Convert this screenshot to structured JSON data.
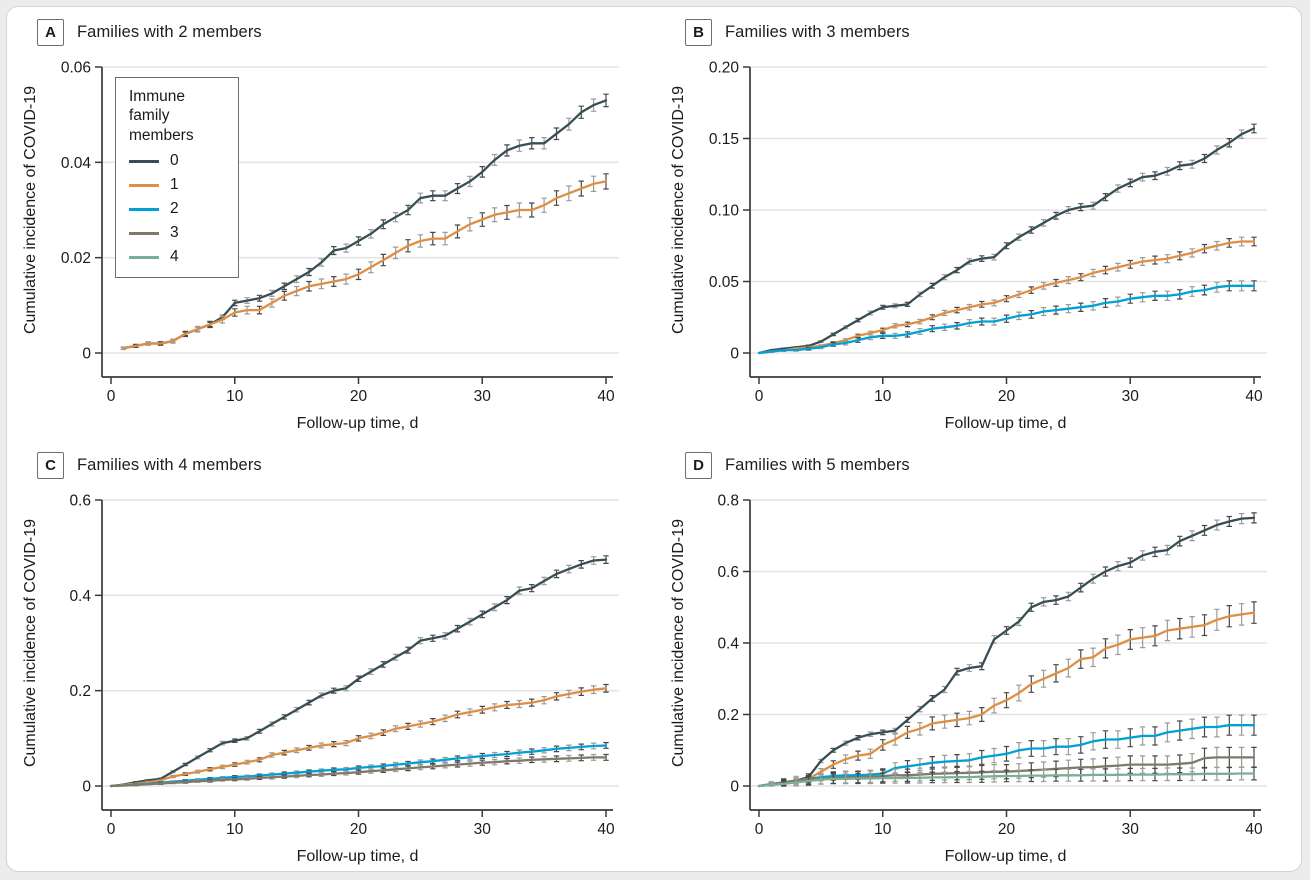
{
  "figure": {
    "xlabel": "Follow-up time, d",
    "ylabel": "Cumulative incidence of COVID-19",
    "legend": {
      "title": "Immune family members",
      "entries": [
        {
          "label": "0",
          "color": "#374E55"
        },
        {
          "label": "1",
          "color": "#DF8F44"
        },
        {
          "label": "2",
          "color": "#00A1D5"
        },
        {
          "label": "3",
          "color": "#80796B"
        },
        {
          "label": "4",
          "color": "#79AF97"
        }
      ]
    },
    "colors": {
      "series_0": "#374E55",
      "series_1": "#DF8F44",
      "series_2": "#00A1D5",
      "series_3": "#80796B",
      "series_4": "#79AF97",
      "error_bar_dark": "#48484B",
      "error_bar_light": "#9B9B99",
      "grid": "#E4E4E4",
      "axis": "#3A3A3C",
      "card_border": "#D4D4D4",
      "page_background": "#ECECEC"
    }
  },
  "chart_data": [
    {
      "type": "line",
      "panel": "A",
      "title": "Families with 2 members",
      "xlabel": "Follow-up time, d",
      "ylabel": "Cumulative incidence of COVID-19",
      "x": {
        "start": 0,
        "end": 40,
        "step": 1
      },
      "xticks": [
        0,
        10,
        20,
        30,
        40
      ],
      "ylim": [
        0,
        0.06
      ],
      "ytick_values": [
        0,
        0.02,
        0.04,
        0.06
      ],
      "ytick_labels": [
        "0",
        "0.02",
        "0.04",
        "0.06"
      ],
      "start_day": 1,
      "show_legend": true,
      "series": [
        {
          "name": "0",
          "color": "#374E55",
          "err_end": 0.0013,
          "values": [
            0,
            0.001,
            0.0015,
            0.002,
            0.002,
            0.0025,
            0.004,
            0.005,
            0.006,
            0.0075,
            0.0105,
            0.011,
            0.0115,
            0.0125,
            0.014,
            0.0155,
            0.017,
            0.019,
            0.0215,
            0.022,
            0.0235,
            0.025,
            0.027,
            0.0285,
            0.03,
            0.0325,
            0.033,
            0.033,
            0.0345,
            0.036,
            0.038,
            0.0405,
            0.0425,
            0.0435,
            0.044,
            0.044,
            0.046,
            0.048,
            0.0505,
            0.052,
            0.053
          ]
        },
        {
          "name": "1",
          "color": "#DF8F44",
          "err_end": 0.0016,
          "values": [
            0,
            0.001,
            0.0015,
            0.002,
            0.002,
            0.0025,
            0.004,
            0.005,
            0.006,
            0.007,
            0.0085,
            0.009,
            0.009,
            0.0105,
            0.012,
            0.013,
            0.014,
            0.0145,
            0.015,
            0.0155,
            0.0165,
            0.018,
            0.0195,
            0.021,
            0.0225,
            0.0235,
            0.024,
            0.024,
            0.0255,
            0.027,
            0.028,
            0.029,
            0.0295,
            0.03,
            0.03,
            0.031,
            0.0325,
            0.0335,
            0.0345,
            0.0355,
            0.036
          ]
        }
      ]
    },
    {
      "type": "line",
      "panel": "B",
      "title": "Families with 3 members",
      "xlabel": "Follow-up time, d",
      "ylabel": "Cumulative incidence of COVID-19",
      "x": {
        "start": 0,
        "end": 40,
        "step": 1
      },
      "xticks": [
        0,
        10,
        20,
        30,
        40
      ],
      "ylim": [
        0,
        0.2
      ],
      "ytick_values": [
        0,
        0.05,
        0.1,
        0.15,
        0.2
      ],
      "ytick_labels": [
        "0",
        "0.05",
        "0.10",
        "0.15",
        "0.20"
      ],
      "start_day": 0,
      "show_legend": false,
      "series": [
        {
          "name": "0",
          "color": "#374E55",
          "err_end": 0.003,
          "values": [
            0,
            0.002,
            0.003,
            0.004,
            0.005,
            0.008,
            0.013,
            0.018,
            0.023,
            0.028,
            0.032,
            0.033,
            0.034,
            0.041,
            0.047,
            0.053,
            0.058,
            0.064,
            0.066,
            0.067,
            0.075,
            0.081,
            0.086,
            0.091,
            0.096,
            0.1,
            0.102,
            0.103,
            0.109,
            0.115,
            0.119,
            0.123,
            0.124,
            0.127,
            0.131,
            0.132,
            0.136,
            0.142,
            0.147,
            0.153,
            0.157
          ]
        },
        {
          "name": "1",
          "color": "#DF8F44",
          "err_end": 0.003,
          "values": [
            0,
            0.001,
            0.002,
            0.003,
            0.004,
            0.005,
            0.007,
            0.009,
            0.012,
            0.014,
            0.016,
            0.019,
            0.02,
            0.022,
            0.025,
            0.028,
            0.03,
            0.032,
            0.034,
            0.035,
            0.038,
            0.041,
            0.044,
            0.047,
            0.049,
            0.051,
            0.053,
            0.056,
            0.058,
            0.06,
            0.062,
            0.064,
            0.065,
            0.066,
            0.068,
            0.07,
            0.073,
            0.075,
            0.077,
            0.078,
            0.078
          ]
        },
        {
          "name": "2",
          "color": "#00A1D5",
          "err_end": 0.0035,
          "values": [
            0,
            0.001,
            0.002,
            0.002,
            0.003,
            0.004,
            0.006,
            0.007,
            0.009,
            0.011,
            0.012,
            0.012,
            0.013,
            0.015,
            0.017,
            0.018,
            0.019,
            0.021,
            0.022,
            0.022,
            0.024,
            0.026,
            0.027,
            0.029,
            0.03,
            0.031,
            0.032,
            0.033,
            0.035,
            0.036,
            0.038,
            0.039,
            0.04,
            0.04,
            0.041,
            0.043,
            0.044,
            0.046,
            0.047,
            0.047,
            0.047
          ]
        }
      ]
    },
    {
      "type": "line",
      "panel": "C",
      "title": "Families with 4 members",
      "xlabel": "Follow-up time, d",
      "ylabel": "Cumulative incidence of COVID-19",
      "x": {
        "start": 0,
        "end": 40,
        "step": 1
      },
      "xticks": [
        0,
        10,
        20,
        30,
        40
      ],
      "ylim": [
        0,
        0.6
      ],
      "ytick_values": [
        0,
        0.2,
        0.4,
        0.6
      ],
      "ytick_labels": [
        "0",
        "0.2",
        "0.4",
        "0.6"
      ],
      "start_day": 0,
      "show_legend": false,
      "series": [
        {
          "name": "0",
          "color": "#374E55",
          "err_end": 0.008,
          "values": [
            0,
            0.003,
            0.008,
            0.012,
            0.015,
            0.03,
            0.045,
            0.06,
            0.075,
            0.09,
            0.095,
            0.1,
            0.115,
            0.13,
            0.145,
            0.16,
            0.175,
            0.19,
            0.2,
            0.205,
            0.225,
            0.24,
            0.255,
            0.27,
            0.285,
            0.305,
            0.31,
            0.315,
            0.33,
            0.345,
            0.36,
            0.375,
            0.39,
            0.41,
            0.415,
            0.43,
            0.445,
            0.455,
            0.465,
            0.473,
            0.475
          ]
        },
        {
          "name": "1",
          "color": "#DF8F44",
          "err_end": 0.008,
          "values": [
            0,
            0.002,
            0.005,
            0.008,
            0.012,
            0.02,
            0.025,
            0.03,
            0.035,
            0.04,
            0.045,
            0.05,
            0.055,
            0.065,
            0.07,
            0.075,
            0.08,
            0.085,
            0.088,
            0.09,
            0.1,
            0.105,
            0.112,
            0.12,
            0.125,
            0.13,
            0.135,
            0.142,
            0.15,
            0.155,
            0.16,
            0.165,
            0.17,
            0.172,
            0.175,
            0.18,
            0.188,
            0.193,
            0.198,
            0.202,
            0.205
          ]
        },
        {
          "name": "2",
          "color": "#00A1D5",
          "err_end": 0.006,
          "values": [
            0,
            0.001,
            0.003,
            0.005,
            0.007,
            0.009,
            0.011,
            0.013,
            0.015,
            0.017,
            0.019,
            0.02,
            0.022,
            0.024,
            0.026,
            0.028,
            0.03,
            0.032,
            0.034,
            0.035,
            0.038,
            0.04,
            0.042,
            0.045,
            0.047,
            0.05,
            0.052,
            0.055,
            0.058,
            0.06,
            0.063,
            0.065,
            0.067,
            0.07,
            0.072,
            0.075,
            0.078,
            0.08,
            0.082,
            0.084,
            0.085
          ]
        },
        {
          "name": "3",
          "color": "#80796B",
          "err_end": 0.006,
          "values": [
            0,
            0.001,
            0.002,
            0.004,
            0.005,
            0.007,
            0.008,
            0.01,
            0.011,
            0.013,
            0.014,
            0.015,
            0.017,
            0.018,
            0.02,
            0.021,
            0.023,
            0.024,
            0.026,
            0.027,
            0.029,
            0.031,
            0.033,
            0.035,
            0.037,
            0.039,
            0.041,
            0.043,
            0.045,
            0.047,
            0.049,
            0.05,
            0.052,
            0.053,
            0.055,
            0.056,
            0.057,
            0.058,
            0.059,
            0.06,
            0.06
          ]
        }
      ]
    },
    {
      "type": "line",
      "panel": "D",
      "title": "Families with 5 members",
      "xlabel": "Follow-up time, d",
      "ylabel": "Cumulative incidence of COVID-19",
      "x": {
        "start": 0,
        "end": 40,
        "step": 1
      },
      "xticks": [
        0,
        10,
        20,
        30,
        40
      ],
      "ylim": [
        0,
        0.8
      ],
      "ytick_values": [
        0,
        0.2,
        0.4,
        0.6,
        0.8
      ],
      "ytick_labels": [
        "0",
        "0.2",
        "0.4",
        "0.6",
        "0.8"
      ],
      "start_day": 0,
      "show_legend": false,
      "series": [
        {
          "name": "0",
          "color": "#374E55",
          "err_end": 0.014,
          "values": [
            0,
            0.005,
            0.01,
            0.015,
            0.025,
            0.07,
            0.1,
            0.12,
            0.135,
            0.145,
            0.15,
            0.155,
            0.185,
            0.215,
            0.245,
            0.27,
            0.32,
            0.33,
            0.335,
            0.41,
            0.435,
            0.46,
            0.5,
            0.515,
            0.52,
            0.53,
            0.555,
            0.58,
            0.6,
            0.615,
            0.625,
            0.645,
            0.655,
            0.66,
            0.685,
            0.7,
            0.715,
            0.73,
            0.74,
            0.748,
            0.75
          ]
        },
        {
          "name": "1",
          "color": "#DF8F44",
          "err_end": 0.03,
          "values": [
            0,
            0.005,
            0.01,
            0.015,
            0.02,
            0.04,
            0.06,
            0.075,
            0.085,
            0.09,
            0.115,
            0.13,
            0.15,
            0.16,
            0.175,
            0.18,
            0.185,
            0.19,
            0.2,
            0.225,
            0.24,
            0.26,
            0.285,
            0.3,
            0.315,
            0.33,
            0.355,
            0.36,
            0.385,
            0.395,
            0.41,
            0.415,
            0.42,
            0.435,
            0.44,
            0.445,
            0.45,
            0.465,
            0.475,
            0.48,
            0.485
          ]
        },
        {
          "name": "2",
          "color": "#00A1D5",
          "err_end": 0.028,
          "values": [
            0,
            0.005,
            0.01,
            0.015,
            0.02,
            0.025,
            0.028,
            0.03,
            0.03,
            0.032,
            0.035,
            0.05,
            0.055,
            0.06,
            0.065,
            0.068,
            0.07,
            0.072,
            0.08,
            0.085,
            0.09,
            0.1,
            0.105,
            0.105,
            0.11,
            0.11,
            0.115,
            0.125,
            0.13,
            0.13,
            0.135,
            0.14,
            0.14,
            0.15,
            0.155,
            0.16,
            0.165,
            0.165,
            0.17,
            0.17,
            0.17
          ]
        },
        {
          "name": "3",
          "color": "#80796B",
          "err_end": 0.028,
          "values": [
            0,
            0.005,
            0.01,
            0.015,
            0.02,
            0.02,
            0.022,
            0.024,
            0.025,
            0.026,
            0.028,
            0.03,
            0.03,
            0.032,
            0.034,
            0.035,
            0.036,
            0.037,
            0.038,
            0.04,
            0.04,
            0.042,
            0.044,
            0.046,
            0.048,
            0.05,
            0.052,
            0.053,
            0.055,
            0.057,
            0.06,
            0.06,
            0.06,
            0.06,
            0.062,
            0.065,
            0.078,
            0.08,
            0.08,
            0.08,
            0.08
          ]
        },
        {
          "name": "4",
          "color": "#79AF97",
          "err_end": 0.018,
          "values": [
            0,
            0.003,
            0.006,
            0.01,
            0.014,
            0.018,
            0.02,
            0.02,
            0.021,
            0.021,
            0.022,
            0.022,
            0.023,
            0.023,
            0.024,
            0.024,
            0.025,
            0.025,
            0.026,
            0.027,
            0.028,
            0.028,
            0.029,
            0.029,
            0.03,
            0.03,
            0.03,
            0.031,
            0.031,
            0.031,
            0.032,
            0.032,
            0.032,
            0.033,
            0.033,
            0.033,
            0.034,
            0.034,
            0.034,
            0.035,
            0.035
          ]
        }
      ]
    }
  ]
}
